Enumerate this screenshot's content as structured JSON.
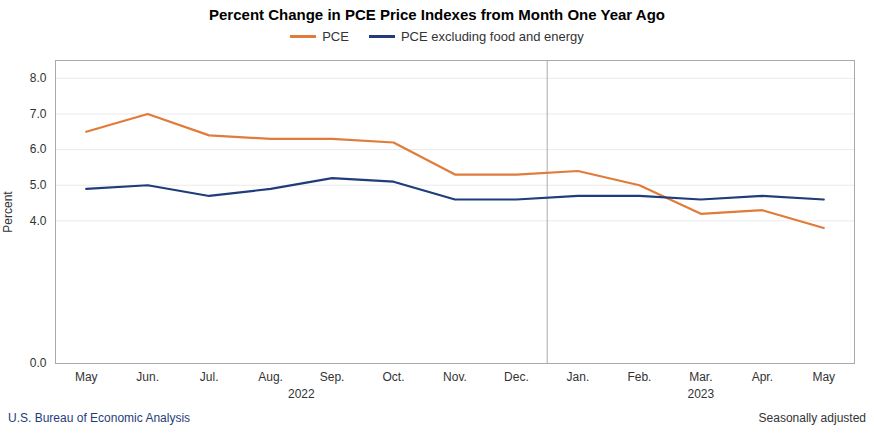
{
  "chart_data": {
    "type": "line",
    "title": "Percent Change in PCE Price Indexes from Month One Year Ago",
    "ylabel": "Percent",
    "categories": [
      "May",
      "Jun.",
      "Jul.",
      "Aug.",
      "Sep.",
      "Oct.",
      "Nov.",
      "Dec.",
      "Jan.",
      "Feb.",
      "Mar.",
      "Apr.",
      "May"
    ],
    "groups": [
      "2022",
      "2022",
      "2022",
      "2022",
      "2022",
      "2022",
      "2022",
      "2022",
      "2023",
      "2023",
      "2023",
      "2023",
      "2023"
    ],
    "series": [
      {
        "name": "PCE",
        "color": "#E07B39",
        "values": [
          6.5,
          7.0,
          6.4,
          6.3,
          6.3,
          6.2,
          5.3,
          5.3,
          5.4,
          5.0,
          4.2,
          4.3,
          3.8
        ]
      },
      {
        "name": "PCE excluding food and energy",
        "color": "#1F3D7A",
        "values": [
          4.9,
          5.0,
          4.7,
          4.9,
          5.2,
          5.1,
          4.6,
          4.6,
          4.7,
          4.7,
          4.6,
          4.7,
          4.6
        ]
      }
    ],
    "ylim": [
      0.0,
      8.5
    ],
    "yticks": [
      {
        "value": 0.0,
        "label": "0.0"
      },
      {
        "value": 4.0,
        "label": "4.0"
      },
      {
        "value": 5.0,
        "label": "5.0"
      },
      {
        "value": 6.0,
        "label": "6.0"
      },
      {
        "value": 7.0,
        "label": "7.0"
      },
      {
        "value": 8.0,
        "label": "8.0"
      }
    ],
    "grid": true,
    "legend": "top",
    "source": "U.S. Bureau of Economic Analysis",
    "note": "Seasonally adjusted"
  }
}
